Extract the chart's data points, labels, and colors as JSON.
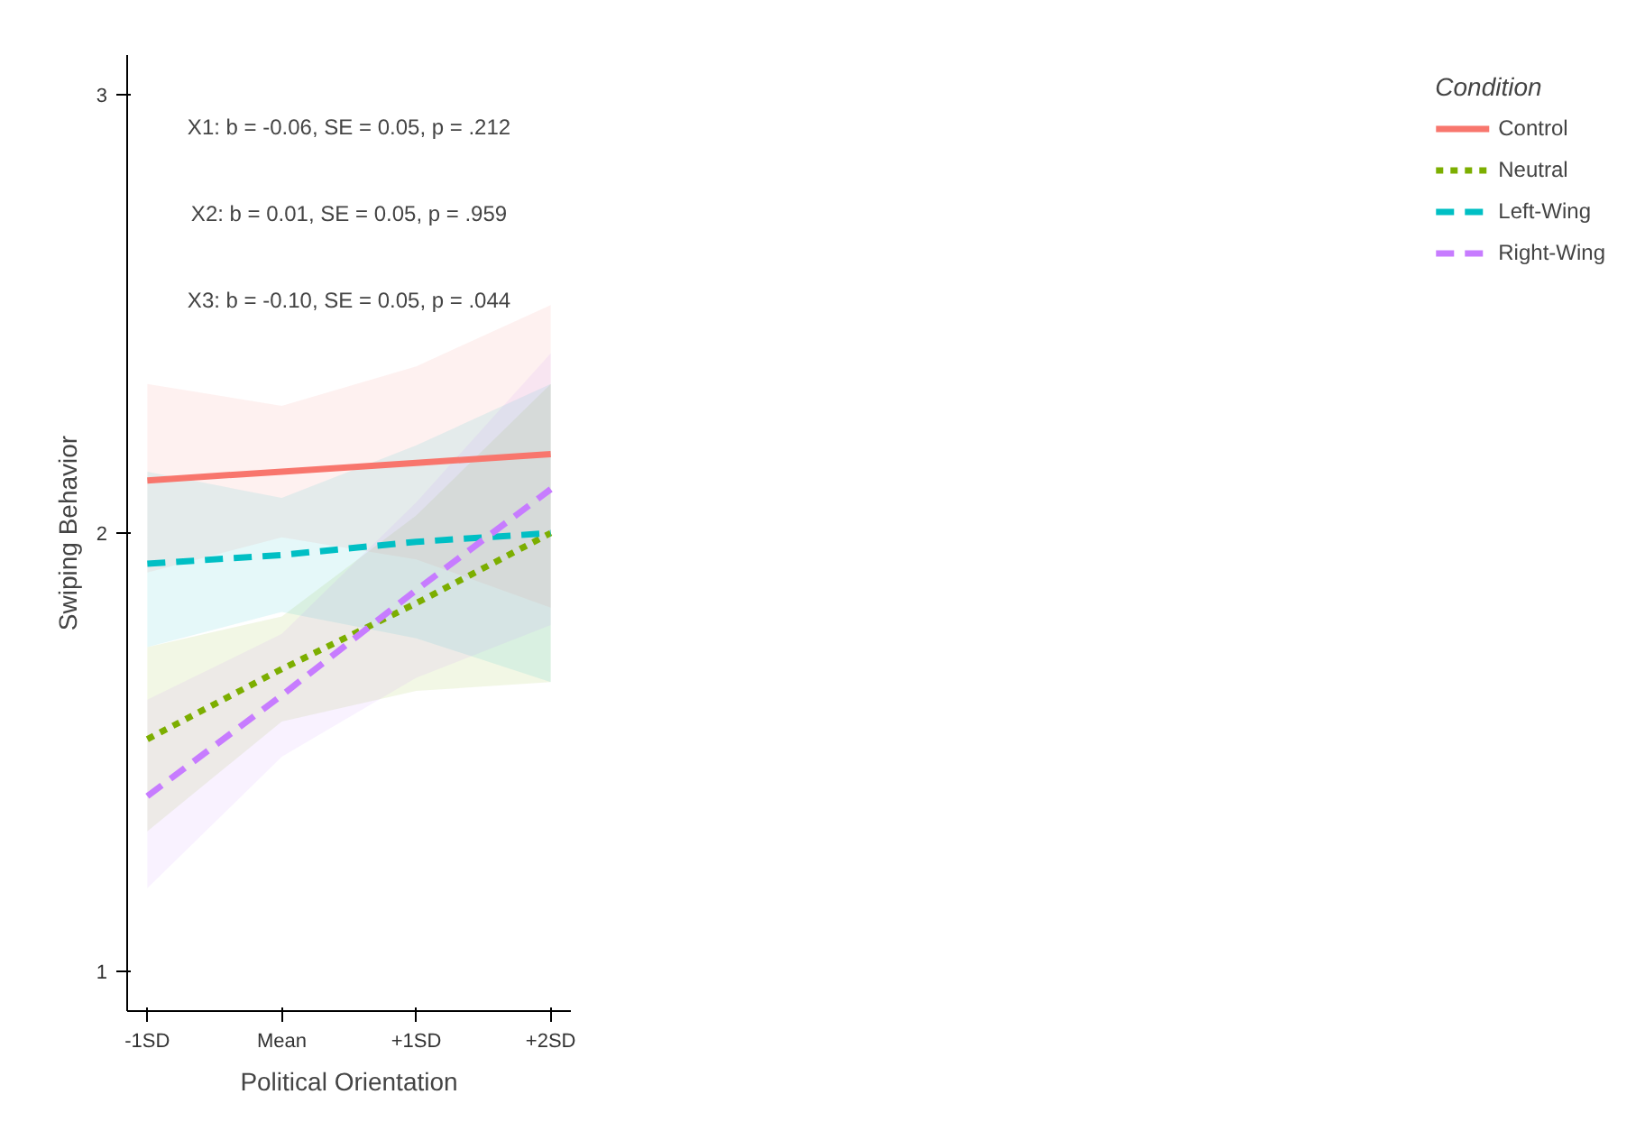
{
  "chart_data": {
    "type": "line",
    "xlabel": "Political Orientation",
    "ylabel": "Swiping Behavior",
    "legend_title": "Condition",
    "categories": [
      "-1SD",
      "Mean",
      "+1SD",
      "+2SD"
    ],
    "series": [
      {
        "name": "Control",
        "color": "#f8766d",
        "line_style": "solid",
        "values": [
          2.12,
          2.14,
          2.16,
          2.18
        ],
        "lower": [
          1.91,
          1.99,
          1.94,
          1.83
        ],
        "upper": [
          2.34,
          2.29,
          2.38,
          2.52
        ]
      },
      {
        "name": "Neutral",
        "color": "#7cae00",
        "line_style": "dotted",
        "values": [
          1.53,
          1.69,
          1.84,
          2.0
        ],
        "lower": [
          1.32,
          1.57,
          1.64,
          1.66
        ],
        "upper": [
          1.74,
          1.81,
          2.04,
          2.34
        ]
      },
      {
        "name": "Left-Wing",
        "color": "#00bfc4",
        "line_style": "dashed",
        "values": [
          1.93,
          1.95,
          1.98,
          2.0
        ],
        "lower": [
          1.74,
          1.82,
          1.76,
          1.66
        ],
        "upper": [
          2.14,
          2.08,
          2.2,
          2.34
        ]
      },
      {
        "name": "Right-Wing",
        "color": "#c77cff",
        "line_style": "dashed",
        "values": [
          1.4,
          1.63,
          1.87,
          2.1
        ],
        "lower": [
          1.19,
          1.49,
          1.67,
          1.79
        ],
        "upper": [
          1.62,
          1.77,
          2.07,
          2.41
        ]
      }
    ],
    "ylim": [
      0.91,
      3.09
    ],
    "yticks": [
      1,
      2,
      3
    ],
    "grid": false,
    "legend": "right",
    "marker": "none",
    "annotations": [
      "X1: b = -0.06, SE = 0.05, p = .212",
      "X2: b = 0.01, SE = 0.05, p = .959",
      "X3: b = -0.10, SE = 0.05, p = .044"
    ]
  }
}
